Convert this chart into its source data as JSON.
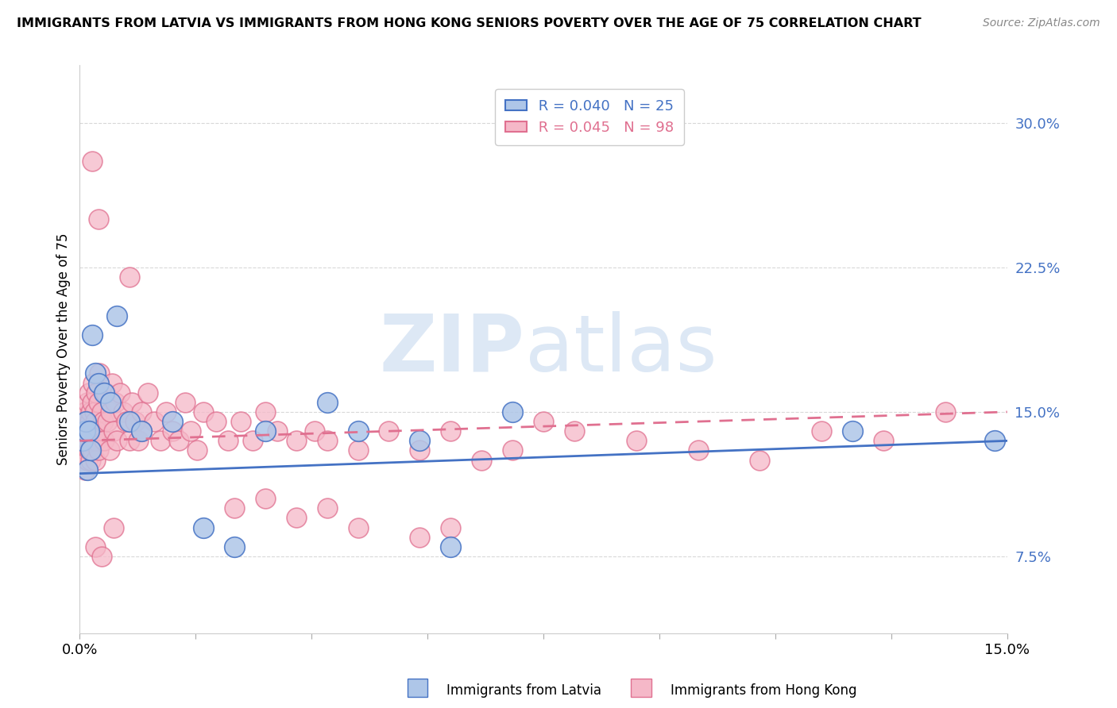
{
  "title": "IMMIGRANTS FROM LATVIA VS IMMIGRANTS FROM HONG KONG SENIORS POVERTY OVER THE AGE OF 75 CORRELATION CHART",
  "source": "Source: ZipAtlas.com",
  "ylabel": "Seniors Poverty Over the Age of 75",
  "y_ticks": [
    7.5,
    15.0,
    22.5,
    30.0
  ],
  "y_tick_labels": [
    "7.5%",
    "15.0%",
    "22.5%",
    "30.0%"
  ],
  "xlim": [
    0.0,
    15.0
  ],
  "ylim": [
    3.5,
    33.0
  ],
  "watermark_zip": "ZIP",
  "watermark_atlas": "atlas",
  "legend_latvia_r": "R = 0.040",
  "legend_latvia_n": "N = 25",
  "legend_hk_r": "R = 0.045",
  "legend_hk_n": "N = 98",
  "color_latvia_fill": "#aec6e8",
  "color_hk_fill": "#f5b8c8",
  "color_latvia_edge": "#4472c4",
  "color_hk_edge": "#e07090",
  "color_latvia_line": "#4472c4",
  "color_hk_line": "#e07090",
  "color_right_ticks": "#4472c4",
  "grid_color": "#d8d8d8",
  "latvia_x": [
    0.05,
    0.08,
    0.1,
    0.12,
    0.15,
    0.18,
    0.2,
    0.25,
    0.3,
    0.4,
    0.5,
    0.6,
    0.8,
    1.0,
    1.5,
    2.0,
    2.5,
    3.0,
    4.0,
    4.5,
    5.5,
    6.0,
    7.0,
    12.5,
    14.8
  ],
  "latvia_y": [
    13.5,
    14.0,
    14.5,
    12.0,
    14.0,
    13.0,
    19.0,
    17.0,
    16.5,
    16.0,
    15.5,
    20.0,
    14.5,
    14.0,
    14.5,
    9.0,
    8.0,
    14.0,
    15.5,
    14.0,
    13.5,
    8.0,
    15.0,
    14.0,
    13.5
  ],
  "hk_x": [
    0.05,
    0.07,
    0.08,
    0.09,
    0.1,
    0.1,
    0.11,
    0.12,
    0.12,
    0.13,
    0.14,
    0.15,
    0.15,
    0.16,
    0.17,
    0.18,
    0.18,
    0.19,
    0.2,
    0.2,
    0.21,
    0.22,
    0.23,
    0.24,
    0.25,
    0.25,
    0.26,
    0.27,
    0.28,
    0.3,
    0.3,
    0.32,
    0.35,
    0.38,
    0.4,
    0.42,
    0.45,
    0.48,
    0.5,
    0.52,
    0.55,
    0.58,
    0.6,
    0.65,
    0.7,
    0.75,
    0.8,
    0.85,
    0.9,
    0.95,
    1.0,
    1.1,
    1.2,
    1.3,
    1.4,
    1.5,
    1.6,
    1.7,
    1.8,
    1.9,
    2.0,
    2.2,
    2.4,
    2.6,
    2.8,
    3.0,
    3.2,
    3.5,
    3.8,
    4.0,
    4.5,
    5.0,
    5.5,
    6.0,
    6.5,
    7.0,
    0.2,
    0.3,
    0.8,
    1.0,
    2.5,
    3.0,
    3.5,
    4.0,
    4.5,
    5.5,
    6.0,
    7.5,
    8.0,
    9.0,
    10.0,
    11.0,
    12.0,
    13.0,
    14.0,
    0.25,
    0.35,
    0.55
  ],
  "hk_y": [
    14.0,
    13.5,
    12.0,
    15.0,
    14.5,
    13.0,
    14.0,
    12.5,
    15.5,
    13.5,
    14.0,
    13.0,
    16.0,
    14.5,
    13.0,
    15.0,
    12.5,
    14.0,
    15.5,
    13.0,
    16.5,
    14.0,
    13.5,
    15.0,
    14.5,
    12.5,
    16.0,
    13.5,
    14.0,
    15.5,
    13.0,
    17.0,
    15.0,
    14.5,
    13.5,
    16.0,
    14.5,
    13.0,
    15.0,
    16.5,
    14.0,
    15.5,
    13.5,
    16.0,
    15.0,
    14.5,
    13.5,
    15.5,
    14.5,
    13.5,
    15.0,
    16.0,
    14.5,
    13.5,
    15.0,
    14.0,
    13.5,
    15.5,
    14.0,
    13.0,
    15.0,
    14.5,
    13.5,
    14.5,
    13.5,
    15.0,
    14.0,
    13.5,
    14.0,
    13.5,
    13.0,
    14.0,
    13.0,
    14.0,
    12.5,
    13.0,
    28.0,
    25.0,
    22.0,
    14.0,
    10.0,
    10.5,
    9.5,
    10.0,
    9.0,
    8.5,
    9.0,
    14.5,
    14.0,
    13.5,
    13.0,
    12.5,
    14.0,
    13.5,
    15.0,
    8.0,
    7.5,
    9.0
  ],
  "latvia_line_x": [
    0.0,
    15.0
  ],
  "latvia_line_y": [
    11.8,
    13.5
  ],
  "hk_line_x": [
    0.0,
    15.0
  ],
  "hk_line_y": [
    13.5,
    15.0
  ],
  "x_minor_ticks": [
    0.0,
    1.875,
    3.75,
    5.625,
    7.5,
    9.375,
    11.25,
    13.125,
    15.0
  ]
}
